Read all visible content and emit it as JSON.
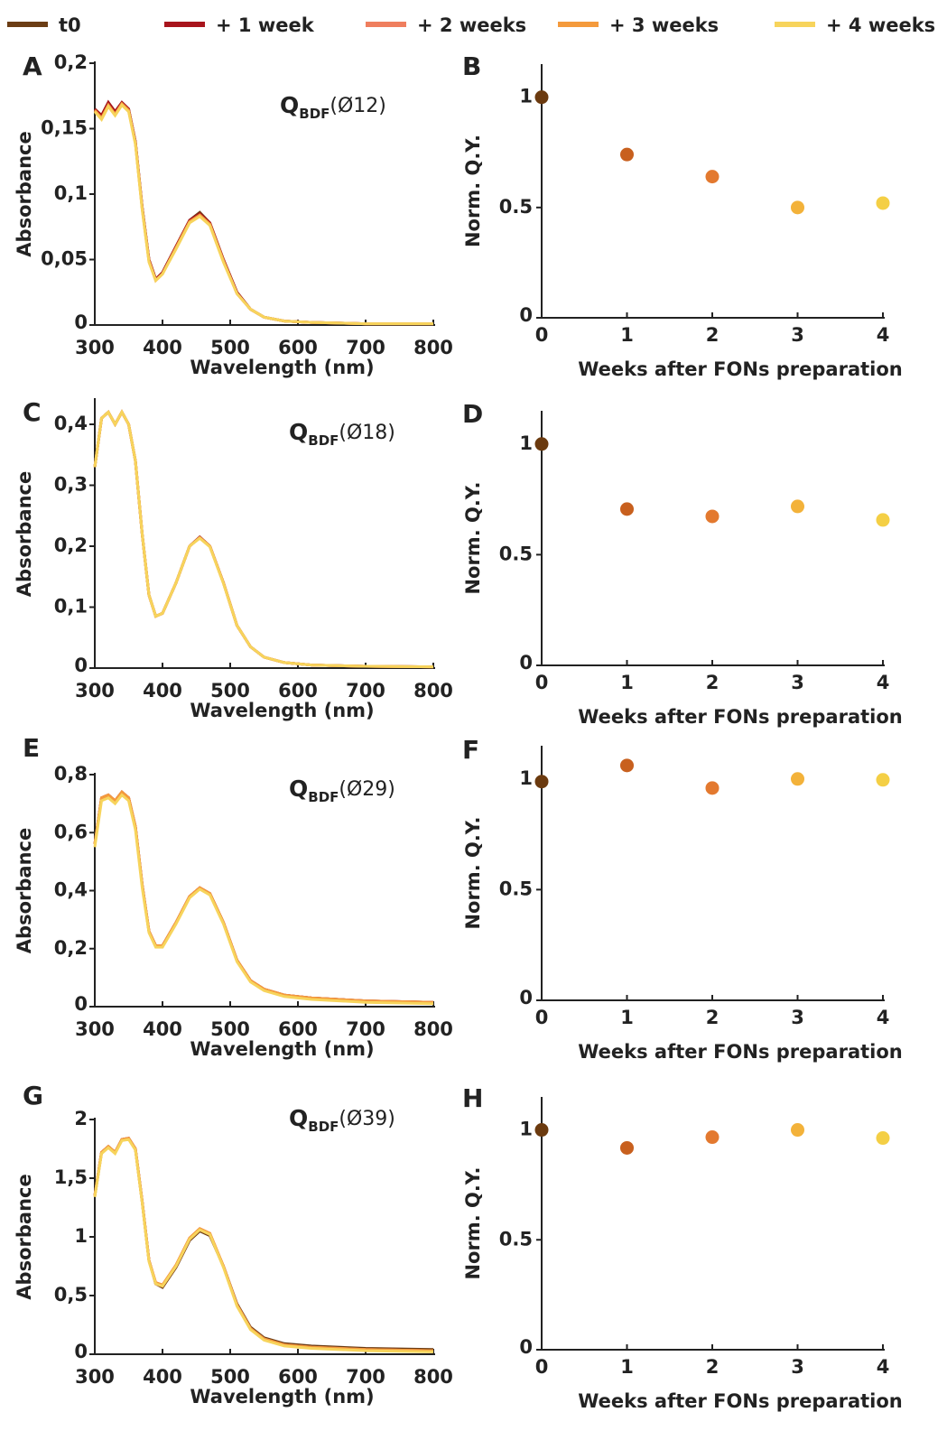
{
  "chart_data": [
    {
      "type": "line",
      "panel_label": "A",
      "annotation": {
        "main": "Q",
        "sub": "BDF",
        "rest": "(Ø12)"
      },
      "xlabel": "Wavelength (nm)",
      "ylabel": "Absorbance",
      "x": [
        300,
        310,
        320,
        330,
        340,
        350,
        360,
        370,
        380,
        390,
        400,
        420,
        440,
        455,
        470,
        490,
        510,
        530,
        550,
        580,
        620,
        700,
        800
      ],
      "xlim": [
        300,
        800
      ],
      "xticks": [
        300,
        400,
        500,
        600,
        700,
        800
      ],
      "ylim": [
        0,
        0.2
      ],
      "yticks": [
        0,
        {
          "value": 0.05,
          "label": "0,05"
        },
        {
          "value": 0.1,
          "label": "0,1"
        },
        {
          "value": 0.15,
          "label": "0,15"
        },
        {
          "value": 0.2,
          "label": "0,2"
        }
      ],
      "series": [
        {
          "name": "t0",
          "color": "#6b3d14",
          "values": [
            0.165,
            0.16,
            0.17,
            0.163,
            0.17,
            0.165,
            0.14,
            0.09,
            0.05,
            0.035,
            0.04,
            0.06,
            0.08,
            0.086,
            0.078,
            0.05,
            0.025,
            0.012,
            0.006,
            0.003,
            0.002,
            0.001,
            0.001
          ]
        },
        {
          "name": "+ 1 week",
          "color": "#a8141c",
          "values": [
            0.165,
            0.16,
            0.17,
            0.163,
            0.17,
            0.165,
            0.14,
            0.09,
            0.05,
            0.035,
            0.04,
            0.06,
            0.08,
            0.085,
            0.078,
            0.05,
            0.025,
            0.012,
            0.006,
            0.003,
            0.002,
            0.001,
            0.001
          ]
        },
        {
          "name": "+ 2 weeks",
          "color": "#ef7e5e",
          "values": [
            0.164,
            0.158,
            0.168,
            0.161,
            0.169,
            0.164,
            0.139,
            0.089,
            0.049,
            0.034,
            0.039,
            0.059,
            0.079,
            0.084,
            0.077,
            0.049,
            0.024,
            0.012,
            0.006,
            0.003,
            0.002,
            0.001,
            0.001
          ]
        },
        {
          "name": "+ 3 weeks",
          "color": "#f49a3c",
          "values": [
            0.164,
            0.158,
            0.168,
            0.161,
            0.169,
            0.164,
            0.139,
            0.089,
            0.049,
            0.034,
            0.039,
            0.059,
            0.079,
            0.084,
            0.077,
            0.049,
            0.024,
            0.012,
            0.006,
            0.003,
            0.002,
            0.001,
            0.001
          ]
        },
        {
          "name": "+ 4 weeks",
          "color": "#f7d45c",
          "values": [
            0.163,
            0.157,
            0.167,
            0.16,
            0.168,
            0.163,
            0.138,
            0.088,
            0.048,
            0.034,
            0.039,
            0.058,
            0.078,
            0.083,
            0.076,
            0.048,
            0.024,
            0.012,
            0.006,
            0.003,
            0.002,
            0.001,
            0.001
          ]
        }
      ]
    },
    {
      "type": "scatter",
      "panel_label": "B",
      "xlabel": "Weeks after FONs preparation",
      "ylabel": "Norm. Q.Y.",
      "x": [
        0,
        1,
        2,
        3,
        4
      ],
      "values": [
        1,
        0.74,
        0.64,
        0.5,
        0.52
      ],
      "colors": [
        "#6b3a0f",
        "#c8601e",
        "#e3792f",
        "#f3b23a",
        "#f4cf45"
      ],
      "xlim": [
        0,
        4
      ],
      "xticks": [
        0,
        1,
        2,
        3,
        4
      ],
      "ylim": [
        0,
        1.15
      ],
      "yticks": [
        0,
        0.5,
        1
      ]
    },
    {
      "type": "line",
      "panel_label": "C",
      "annotation": {
        "main": "Q",
        "sub": "BDF",
        "rest": "(Ø18)"
      },
      "xlabel": "Wavelength (nm)",
      "ylabel": "Absorbance",
      "x": [
        300,
        310,
        320,
        330,
        340,
        350,
        360,
        370,
        380,
        390,
        400,
        420,
        440,
        455,
        470,
        490,
        510,
        530,
        550,
        580,
        620,
        700,
        800
      ],
      "xlim": [
        300,
        800
      ],
      "xticks": [
        300,
        400,
        500,
        600,
        700,
        800
      ],
      "ylim": [
        0,
        0.44
      ],
      "yticks": [
        0,
        {
          "value": 0.1,
          "label": "0,1"
        },
        {
          "value": 0.2,
          "label": "0,2"
        },
        {
          "value": 0.3,
          "label": "0,3"
        },
        {
          "value": 0.4,
          "label": "0,4"
        }
      ],
      "series": [
        {
          "color": "#6b3d14",
          "values": [
            0.33,
            0.41,
            0.42,
            0.4,
            0.42,
            0.4,
            0.34,
            0.22,
            0.12,
            0.085,
            0.09,
            0.14,
            0.2,
            0.215,
            0.2,
            0.14,
            0.07,
            0.035,
            0.018,
            0.009,
            0.005,
            0.003,
            0.002
          ]
        },
        {
          "color": "#a8141c",
          "values": [
            0.33,
            0.41,
            0.42,
            0.4,
            0.42,
            0.4,
            0.34,
            0.22,
            0.12,
            0.085,
            0.09,
            0.14,
            0.2,
            0.215,
            0.2,
            0.14,
            0.07,
            0.035,
            0.018,
            0.009,
            0.005,
            0.003,
            0.002
          ]
        },
        {
          "color": "#ef7e5e",
          "values": [
            0.33,
            0.41,
            0.42,
            0.4,
            0.42,
            0.4,
            0.34,
            0.22,
            0.12,
            0.085,
            0.09,
            0.14,
            0.2,
            0.214,
            0.2,
            0.14,
            0.07,
            0.035,
            0.018,
            0.009,
            0.005,
            0.003,
            0.002
          ]
        },
        {
          "color": "#f49a3c",
          "values": [
            0.33,
            0.41,
            0.42,
            0.4,
            0.42,
            0.4,
            0.34,
            0.22,
            0.12,
            0.085,
            0.09,
            0.14,
            0.2,
            0.214,
            0.2,
            0.14,
            0.07,
            0.035,
            0.018,
            0.009,
            0.005,
            0.003,
            0.002
          ]
        },
        {
          "color": "#f7d45c",
          "values": [
            0.33,
            0.41,
            0.42,
            0.4,
            0.42,
            0.4,
            0.34,
            0.22,
            0.12,
            0.085,
            0.09,
            0.14,
            0.2,
            0.213,
            0.199,
            0.139,
            0.07,
            0.035,
            0.018,
            0.009,
            0.005,
            0.003,
            0.002
          ]
        }
      ]
    },
    {
      "type": "scatter",
      "panel_label": "D",
      "xlabel": "Weeks after FONs preparation",
      "ylabel": "Norm. Q.Y.",
      "x": [
        0,
        1,
        2,
        3,
        4
      ],
      "values": [
        1,
        0.706,
        0.673,
        0.718,
        0.657
      ],
      "colors": [
        "#6b3a0f",
        "#c8601e",
        "#e3792f",
        "#f3b23a",
        "#f4cf45"
      ],
      "xlim": [
        0,
        4
      ],
      "xticks": [
        0,
        1,
        2,
        3,
        4
      ],
      "ylim": [
        0,
        1.15
      ],
      "yticks": [
        0,
        0.5,
        1
      ]
    },
    {
      "type": "line",
      "panel_label": "E",
      "annotation": {
        "main": "Q",
        "sub": "BDF",
        "rest": "(Ø29)"
      },
      "xlabel": "Wavelength (nm)",
      "ylabel": "Absorbance",
      "x": [
        300,
        310,
        320,
        330,
        340,
        350,
        360,
        370,
        380,
        390,
        400,
        420,
        440,
        455,
        470,
        490,
        510,
        530,
        550,
        580,
        620,
        700,
        800
      ],
      "xlim": [
        300,
        800
      ],
      "xticks": [
        300,
        400,
        500,
        600,
        700,
        800
      ],
      "ylim": [
        0,
        0.8
      ],
      "yticks": [
        0,
        {
          "value": 0.2,
          "label": "0,2"
        },
        {
          "value": 0.4,
          "label": "0,4"
        },
        {
          "value": 0.6,
          "label": "0,6"
        },
        {
          "value": 0.8,
          "label": "0,8"
        }
      ],
      "series": [
        {
          "color": "#6b3d14",
          "values": [
            0.56,
            0.72,
            0.73,
            0.71,
            0.74,
            0.72,
            0.62,
            0.42,
            0.26,
            0.21,
            0.21,
            0.29,
            0.38,
            0.41,
            0.39,
            0.29,
            0.16,
            0.09,
            0.06,
            0.04,
            0.03,
            0.02,
            0.015
          ]
        },
        {
          "color": "#a8141c",
          "values": [
            0.56,
            0.72,
            0.73,
            0.71,
            0.74,
            0.72,
            0.62,
            0.42,
            0.26,
            0.21,
            0.21,
            0.29,
            0.38,
            0.41,
            0.39,
            0.29,
            0.16,
            0.09,
            0.06,
            0.04,
            0.03,
            0.02,
            0.015
          ]
        },
        {
          "color": "#ef7e5e",
          "values": [
            0.56,
            0.72,
            0.73,
            0.71,
            0.74,
            0.72,
            0.62,
            0.42,
            0.26,
            0.21,
            0.21,
            0.29,
            0.38,
            0.41,
            0.39,
            0.29,
            0.16,
            0.09,
            0.06,
            0.04,
            0.03,
            0.02,
            0.015
          ]
        },
        {
          "color": "#f49a3c",
          "values": [
            0.56,
            0.72,
            0.73,
            0.71,
            0.74,
            0.72,
            0.62,
            0.42,
            0.26,
            0.21,
            0.21,
            0.29,
            0.38,
            0.41,
            0.39,
            0.29,
            0.16,
            0.09,
            0.06,
            0.04,
            0.03,
            0.02,
            0.015
          ]
        },
        {
          "color": "#f7d45c",
          "values": [
            0.55,
            0.71,
            0.72,
            0.7,
            0.73,
            0.71,
            0.61,
            0.41,
            0.255,
            0.205,
            0.205,
            0.285,
            0.375,
            0.405,
            0.385,
            0.285,
            0.155,
            0.085,
            0.055,
            0.035,
            0.025,
            0.015,
            0.01
          ]
        }
      ]
    },
    {
      "type": "scatter",
      "panel_label": "F",
      "xlabel": "Weeks after FONs preparation",
      "ylabel": "Norm. Q.Y.",
      "x": [
        0,
        1,
        2,
        3,
        4
      ],
      "values": [
        0.988,
        1.061,
        0.959,
        1,
        0.996
      ],
      "colors": [
        "#6b3a0f",
        "#c8601e",
        "#e3792f",
        "#f3b23a",
        "#f4cf45"
      ],
      "xlim": [
        0,
        4
      ],
      "xticks": [
        0,
        1,
        2,
        3,
        4
      ],
      "ylim": [
        0,
        1.15
      ],
      "yticks": [
        0,
        0.5,
        1
      ]
    },
    {
      "type": "line",
      "panel_label": "G",
      "annotation": {
        "main": "Q",
        "sub": "BDF",
        "rest": "(Ø39)"
      },
      "xlabel": "Wavelength (nm)",
      "ylabel": "Absorbance",
      "x": [
        300,
        310,
        320,
        330,
        340,
        350,
        360,
        370,
        380,
        390,
        400,
        420,
        440,
        455,
        470,
        490,
        510,
        530,
        550,
        580,
        620,
        700,
        800
      ],
      "xlim": [
        300,
        800
      ],
      "xticks": [
        300,
        400,
        500,
        600,
        700,
        800
      ],
      "ylim": [
        0,
        2
      ],
      "yticks": [
        0,
        {
          "value": 0.5,
          "label": "0,5"
        },
        1,
        {
          "value": 1.5,
          "label": "1,5"
        },
        2
      ],
      "series": [
        {
          "color": "#6b3d14",
          "values": [
            1.35,
            1.72,
            1.77,
            1.72,
            1.83,
            1.84,
            1.75,
            1.3,
            0.8,
            0.6,
            0.57,
            0.74,
            0.97,
            1.05,
            1.01,
            0.75,
            0.43,
            0.23,
            0.14,
            0.09,
            0.07,
            0.05,
            0.04
          ]
        },
        {
          "color": "#a8141c",
          "values": [
            1.35,
            1.72,
            1.77,
            1.72,
            1.83,
            1.84,
            1.75,
            1.3,
            0.8,
            0.6,
            0.58,
            0.75,
            0.98,
            1.06,
            1.02,
            0.75,
            0.42,
            0.22,
            0.13,
            0.08,
            0.06,
            0.04,
            0.03
          ]
        },
        {
          "color": "#ef7e5e",
          "values": [
            1.35,
            1.72,
            1.77,
            1.72,
            1.83,
            1.84,
            1.75,
            1.3,
            0.8,
            0.61,
            0.59,
            0.76,
            0.99,
            1.07,
            1.03,
            0.75,
            0.42,
            0.22,
            0.13,
            0.08,
            0.06,
            0.04,
            0.03
          ]
        },
        {
          "color": "#f49a3c",
          "values": [
            1.35,
            1.72,
            1.77,
            1.72,
            1.83,
            1.84,
            1.75,
            1.3,
            0.8,
            0.61,
            0.59,
            0.76,
            0.99,
            1.07,
            1.03,
            0.75,
            0.42,
            0.22,
            0.13,
            0.08,
            0.06,
            0.04,
            0.03
          ]
        },
        {
          "color": "#f7d45c",
          "values": [
            1.34,
            1.71,
            1.76,
            1.71,
            1.82,
            1.83,
            1.74,
            1.29,
            0.79,
            0.6,
            0.58,
            0.75,
            0.98,
            1.06,
            1.02,
            0.74,
            0.41,
            0.21,
            0.12,
            0.07,
            0.05,
            0.03,
            0.02
          ]
        }
      ]
    },
    {
      "type": "scatter",
      "panel_label": "H",
      "xlabel": "Weeks after FONs preparation",
      "ylabel": "Norm. Q.Y.",
      "x": [
        0,
        1,
        2,
        3,
        4
      ],
      "values": [
        1,
        0.918,
        0.967,
        1,
        0.963
      ],
      "colors": [
        "#6b3a0f",
        "#c8601e",
        "#e3792f",
        "#f3b23a",
        "#f4cf45"
      ],
      "xlim": [
        0,
        4
      ],
      "xticks": [
        0,
        1,
        2,
        3,
        4
      ],
      "ylim": [
        0,
        1.15
      ],
      "yticks": [
        0,
        0.5,
        1
      ]
    }
  ]
}
